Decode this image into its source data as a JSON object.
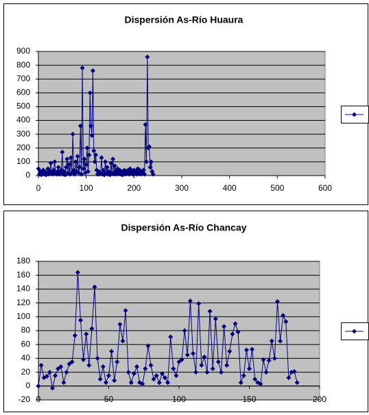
{
  "chart_data": [
    {
      "type": "line",
      "title": "Dispersión As-Río Huaura",
      "x": [
        0,
        2,
        4,
        6,
        8,
        10,
        12,
        14,
        16,
        18,
        20,
        22,
        24,
        26,
        28,
        30,
        32,
        34,
        36,
        38,
        40,
        42,
        44,
        46,
        48,
        50,
        52,
        54,
        56,
        58,
        60,
        62,
        64,
        66,
        68,
        70,
        72,
        74,
        76,
        78,
        80,
        82,
        84,
        86,
        88,
        90,
        92,
        94,
        96,
        98,
        100,
        102,
        104,
        106,
        108,
        110,
        112,
        114,
        116,
        118,
        120,
        122,
        124,
        126,
        128,
        130,
        132,
        134,
        136,
        138,
        140,
        142,
        144,
        146,
        148,
        150,
        152,
        154,
        156,
        158,
        160,
        162,
        164,
        166,
        168,
        170,
        172,
        174,
        176,
        178,
        180,
        182,
        184,
        186,
        188,
        190,
        192,
        194,
        196,
        198,
        200,
        202,
        204,
        206,
        208,
        210,
        212,
        214,
        216,
        218,
        220,
        222,
        224,
        226,
        228,
        230,
        232,
        234,
        236,
        238,
        240
      ],
      "series": [
        {
          "color": "#000080",
          "values": [
            50,
            10,
            30,
            5,
            20,
            40,
            10,
            30,
            5,
            20,
            50,
            10,
            30,
            90,
            20,
            10,
            40,
            100,
            20,
            10,
            30,
            60,
            10,
            20,
            40,
            170,
            10,
            30,
            5,
            60,
            120,
            20,
            80,
            10,
            130,
            20,
            300,
            40,
            10,
            100,
            30,
            140,
            20,
            60,
            360,
            10,
            780,
            50,
            120,
            20,
            80,
            200,
            30,
            150,
            600,
            360,
            290,
            760,
            180,
            100,
            150,
            40,
            10,
            30,
            10,
            20,
            130,
            10,
            40,
            5,
            100,
            20,
            60,
            10,
            30,
            5,
            90,
            20,
            120,
            10,
            70,
            30,
            10,
            50,
            20,
            40,
            10,
            30,
            5,
            20,
            40,
            10,
            30,
            20,
            40,
            10,
            50,
            20,
            30,
            10,
            40,
            20,
            30,
            10,
            50,
            20,
            40,
            10,
            30,
            20,
            40,
            10,
            370,
            100,
            860,
            200,
            210,
            60,
            100,
            30,
            10
          ]
        }
      ],
      "xlim": [
        0,
        600
      ],
      "xticks": [
        0,
        100,
        200,
        300,
        400,
        500,
        600
      ],
      "ylim": [
        0,
        900
      ],
      "yticks": [
        0,
        100,
        200,
        300,
        400,
        500,
        600,
        700,
        800,
        900
      ],
      "grid": true,
      "legend": "right"
    },
    {
      "type": "line",
      "title": "Dispersión As-Río Chancay",
      "x": [
        0,
        2,
        4,
        6,
        8,
        10,
        12,
        14,
        16,
        18,
        20,
        22,
        24,
        26,
        28,
        30,
        32,
        34,
        36,
        38,
        40,
        42,
        44,
        46,
        48,
        50,
        52,
        54,
        56,
        58,
        60,
        62,
        64,
        66,
        68,
        70,
        72,
        74,
        76,
        78,
        80,
        82,
        84,
        86,
        88,
        90,
        92,
        94,
        96,
        98,
        100,
        102,
        104,
        106,
        108,
        110,
        112,
        114,
        116,
        118,
        120,
        122,
        124,
        126,
        128,
        130,
        132,
        134,
        136,
        138,
        140,
        142,
        144,
        146,
        148,
        150,
        152,
        154,
        156,
        158,
        160,
        162,
        164,
        166,
        168,
        170,
        172,
        174,
        176,
        178,
        180,
        182,
        184
      ],
      "series": [
        {
          "color": "#000080",
          "values": [
            0,
            30,
            12,
            14,
            20,
            -3,
            15,
            25,
            28,
            5,
            20,
            32,
            35,
            73,
            164,
            95,
            38,
            75,
            30,
            83,
            143,
            40,
            10,
            28,
            5,
            15,
            50,
            8,
            35,
            89,
            65,
            109,
            20,
            5,
            18,
            28,
            5,
            3,
            25,
            58,
            30,
            10,
            15,
            5,
            18,
            12,
            5,
            71,
            25,
            15,
            35,
            38,
            80,
            45,
            123,
            47,
            20,
            119,
            30,
            42,
            20,
            108,
            25,
            97,
            35,
            20,
            86,
            30,
            50,
            75,
            90,
            78,
            5,
            15,
            52,
            25,
            53,
            10,
            5,
            3,
            38,
            20,
            37,
            65,
            40,
            122,
            65,
            102,
            93,
            12,
            20,
            21,
            5
          ]
        }
      ],
      "xlim": [
        0,
        200
      ],
      "xticks": [
        0,
        50,
        100,
        150,
        200
      ],
      "ylim": [
        -20,
        180
      ],
      "yticks": [
        -20,
        0,
        20,
        40,
        60,
        80,
        100,
        120,
        140,
        160,
        180
      ],
      "grid": true,
      "legend": "right"
    }
  ]
}
